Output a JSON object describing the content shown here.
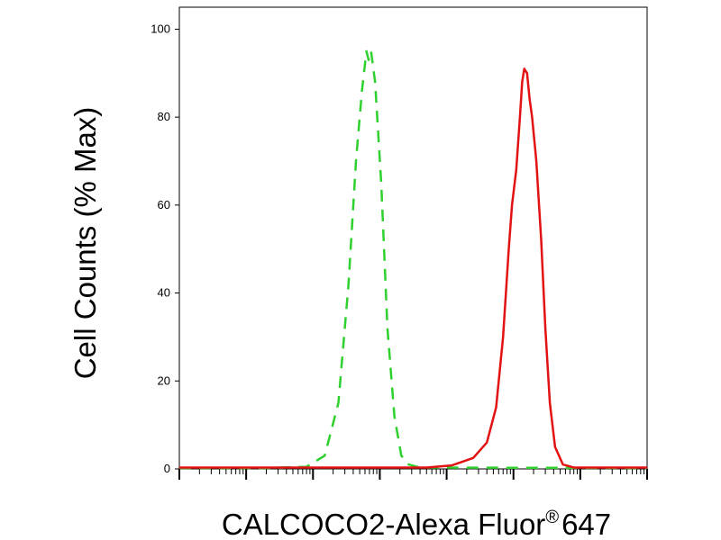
{
  "chart_data": {
    "type": "line",
    "title": "",
    "xlabel": "CALCOCO2-Alexa Fluor® 647",
    "xlabel_main": "CALCOCO2-Alexa Fluor",
    "xlabel_mark": "®",
    "xlabel_suffix": "647",
    "ylabel": "Cell Counts (% Max)",
    "x_scale": "log",
    "xlim": [
      10,
      100000000
    ],
    "ylim": [
      0,
      105
    ],
    "grid": false,
    "x_tick_labels": [],
    "y_ticks": [
      0,
      20,
      40,
      60,
      80,
      100
    ],
    "y_tick_labels": [
      "0",
      "20",
      "40",
      "60",
      "80",
      "100"
    ],
    "series": [
      {
        "color": "#2ed12e",
        "style": "dashed",
        "points": [
          [
            10,
            0.2
          ],
          [
            200,
            0.2
          ],
          [
            800,
            0.5
          ],
          [
            1500,
            3
          ],
          [
            2400,
            15
          ],
          [
            3400,
            42
          ],
          [
            4400,
            70
          ],
          [
            5400,
            86
          ],
          [
            6300,
            95
          ],
          [
            6800,
            93
          ],
          [
            7400,
            95
          ],
          [
            8500,
            88
          ],
          [
            10500,
            65
          ],
          [
            13000,
            32
          ],
          [
            16500,
            12
          ],
          [
            21000,
            3
          ],
          [
            27000,
            1
          ],
          [
            40000,
            0.3
          ],
          [
            100000000,
            0.2
          ]
        ]
      },
      {
        "color": "#e21212",
        "style": "solid",
        "points": [
          [
            10,
            0.3
          ],
          [
            50000,
            0.3
          ],
          [
            120000,
            0.8
          ],
          [
            250000,
            2.5
          ],
          [
            400000,
            6
          ],
          [
            550000,
            14
          ],
          [
            700000,
            30
          ],
          [
            850000,
            50
          ],
          [
            950000,
            60
          ],
          [
            1100000,
            68
          ],
          [
            1250000,
            80
          ],
          [
            1350000,
            88
          ],
          [
            1450000,
            91
          ],
          [
            1600000,
            90
          ],
          [
            1750000,
            84
          ],
          [
            1900000,
            80
          ],
          [
            2200000,
            70
          ],
          [
            2600000,
            52
          ],
          [
            3000000,
            32
          ],
          [
            3500000,
            15
          ],
          [
            4200000,
            5
          ],
          [
            5500000,
            1
          ],
          [
            8000000,
            0.3
          ],
          [
            100000000,
            0.3
          ]
        ]
      }
    ]
  }
}
